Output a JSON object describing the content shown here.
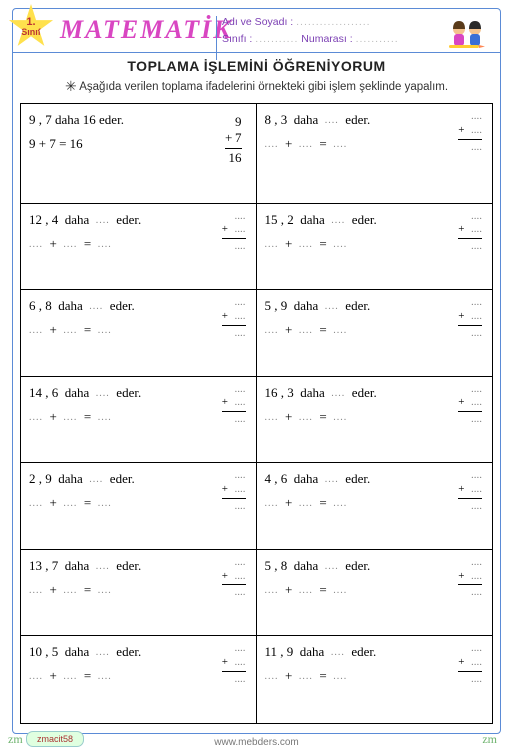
{
  "header": {
    "grade_num": "1.",
    "grade_label": "Sınıf",
    "subject": "MATEMATİK",
    "name_label": "Adı ve Soyadı :",
    "class_label": "Sınıfı :",
    "number_label": "Numarası :",
    "dots": "..................."
  },
  "title": "TOPLAMA İŞLEMİNİ ÖĞRENİYORUM",
  "instruction": "Aşağıda verilen toplama ifadelerini örnekteki gibi işlem şeklinde yapalım.",
  "blank": "....",
  "words": {
    "daha": "daha",
    "eder": "eder."
  },
  "example": {
    "a": "9",
    "b": "7",
    "sum": "16",
    "line1": "9 , 7   daha  16  eder.",
    "line2": "9 + 7  =  16"
  },
  "problems": [
    {
      "a": "8",
      "b": "3"
    },
    {
      "a": "12",
      "b": "4"
    },
    {
      "a": "15",
      "b": "2"
    },
    {
      "a": "6",
      "b": "8"
    },
    {
      "a": "5",
      "b": "9"
    },
    {
      "a": "14",
      "b": "6"
    },
    {
      "a": "16",
      "b": "3"
    },
    {
      "a": "2",
      "b": "9"
    },
    {
      "a": "4",
      "b": "6"
    },
    {
      "a": "13",
      "b": "7"
    },
    {
      "a": "5",
      "b": "8"
    },
    {
      "a": "10",
      "b": "5"
    },
    {
      "a": "11",
      "b": "9"
    }
  ],
  "footer": {
    "tag": "zmacit58",
    "site": "www.mebders.com",
    "sig": "zm"
  },
  "colors": {
    "border": "#5b8bd6",
    "subject": "#d946c2",
    "badge": "#ffe14d"
  }
}
